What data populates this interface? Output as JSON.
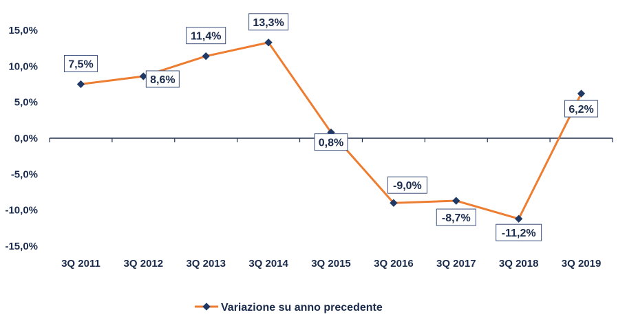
{
  "chart_data": {
    "type": "line",
    "categories": [
      "3Q 2011",
      "3Q 2012",
      "3Q 2013",
      "3Q 2014",
      "3Q 2015",
      "3Q 2016",
      "3Q 2017",
      "3Q 2018",
      "3Q 2019"
    ],
    "series": [
      {
        "name": "Variazione su anno precedente",
        "values": [
          7.5,
          8.6,
          11.4,
          13.3,
          0.8,
          -9.0,
          -8.7,
          -11.2,
          6.2
        ],
        "labels": [
          "7,5%",
          "8,6%",
          "11,4%",
          "13,3%",
          "0,8%",
          "-9,0%",
          "-8,7%",
          "-11,2%",
          "6,2%"
        ],
        "line_color": "#ED7D31",
        "marker_color": "#1F3864"
      }
    ],
    "yticks": [
      "15,0%",
      "10,0%",
      "5,0%",
      "0,0%",
      "-5,0%",
      "-10,0%",
      "-15,0%"
    ],
    "ylim": [
      -15,
      15
    ],
    "grid": false,
    "legend": "bottom"
  }
}
